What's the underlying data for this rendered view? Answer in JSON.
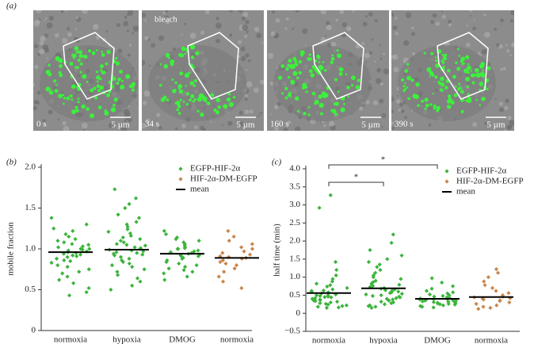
{
  "panel_a": {
    "label": "(a)",
    "frames": [
      {
        "time": "0 s",
        "scale": "5 µm"
      },
      {
        "time": "34 s",
        "note": "bleach",
        "scale": "5 µm"
      },
      {
        "time": "160 s",
        "scale": "5 µm"
      },
      {
        "time": "390 s",
        "scale": "5 µm"
      }
    ]
  },
  "chart_data": [
    {
      "type": "scatter",
      "panel_label": "(b)",
      "y_label": "mobile fraction",
      "categories": [
        "normoxia",
        "hypoxia",
        "DMOG",
        "normoxia"
      ],
      "ylim": [
        0,
        2
      ],
      "yticks": [
        0,
        0.5,
        {
          "value": 1,
          "label": "1.0"
        },
        1.5,
        {
          "value": 2,
          "label": "2.0"
        }
      ],
      "legend": "top-right",
      "series": [
        {
          "name": "EGFP-HIF-2α",
          "color": "#3cb43c",
          "marker": "diamond",
          "values": [
            [
              1.38,
              1.3,
              1.25,
              1.22,
              1.18,
              1.15,
              1.12,
              1.1,
              1.08,
              1.06,
              1.05,
              1.03,
              1.02,
              1.0,
              0.99,
              0.98,
              0.97,
              0.96,
              0.95,
              0.94,
              0.93,
              0.92,
              0.91,
              0.9,
              0.88,
              0.86,
              0.85,
              0.83,
              0.8,
              0.78,
              0.75,
              0.72,
              0.7,
              0.66,
              0.62,
              0.58,
              0.52,
              0.47,
              0.43,
              1.0
            ],
            [
              1.73,
              1.62,
              1.55,
              1.5,
              1.42,
              1.38,
              1.33,
              1.3,
              1.27,
              1.24,
              1.21,
              1.19,
              1.16,
              1.14,
              1.12,
              1.1,
              1.08,
              1.06,
              1.04,
              1.02,
              1.01,
              1.0,
              0.99,
              0.98,
              0.97,
              0.96,
              0.95,
              0.94,
              0.93,
              0.92,
              0.9,
              0.88,
              0.86,
              0.84,
              0.82,
              0.8,
              0.78,
              0.75,
              0.72,
              0.68,
              0.64,
              0.6,
              0.55,
              0.5,
              1.05
            ],
            [
              1.22,
              1.18,
              1.14,
              1.12,
              1.1,
              1.08,
              1.06,
              1.04,
              1.02,
              1.01,
              1.0,
              0.98,
              0.97,
              0.96,
              0.95,
              0.94,
              0.93,
              0.92,
              0.91,
              0.9,
              0.89,
              0.88,
              0.86,
              0.84,
              0.82,
              0.8,
              0.78,
              0.76,
              0.74,
              0.72,
              0.7,
              0.66,
              0.62,
              1.0,
              0.95
            ],
            null
          ]
        },
        {
          "name": "HIF-2α-DM-EGFP",
          "color": "#c8864a",
          "marker": "diamond",
          "values": [
            null,
            null,
            null,
            [
              1.22,
              1.15,
              1.1,
              1.06,
              1.02,
              1.0,
              0.97,
              0.95,
              0.93,
              0.91,
              0.9,
              0.89,
              0.88,
              0.86,
              0.84,
              0.82,
              0.8,
              0.76,
              0.72,
              0.66,
              0.6,
              0.52
            ]
          ]
        },
        {
          "name": "mean",
          "color": "#000000",
          "marker": "line",
          "values": [
            0.96,
            0.99,
            0.94,
            0.89
          ]
        }
      ]
    },
    {
      "type": "scatter",
      "panel_label": "(c)",
      "y_label": "half time (min)",
      "categories": [
        "normoxia",
        "hypoxia",
        "DMOG",
        "normoxia"
      ],
      "ylim": [
        -0.5,
        4
      ],
      "yticks": [
        {
          "value": -0.5,
          "label": "−0.5"
        },
        0,
        0.5,
        {
          "value": 1,
          "label": "1.0"
        },
        1.5,
        {
          "value": 2,
          "label": "2.0"
        },
        2.5,
        {
          "value": 3,
          "label": "3.0"
        },
        3.5,
        {
          "value": 4,
          "label": "4.0"
        }
      ],
      "legend": "top-right",
      "annotations": [
        {
          "text": "*",
          "between": [
            0,
            2
          ]
        },
        {
          "text": "*",
          "between": [
            0,
            1
          ]
        }
      ],
      "series": [
        {
          "name": "EGFP-HIF-2α",
          "color": "#3cb43c",
          "marker": "diamond",
          "values": [
            [
              3.27,
              2.92,
              1.42,
              1.2,
              1.05,
              0.95,
              0.88,
              0.82,
              0.78,
              0.74,
              0.7,
              0.66,
              0.63,
              0.6,
              0.58,
              0.55,
              0.52,
              0.5,
              0.48,
              0.46,
              0.44,
              0.42,
              0.4,
              0.38,
              0.36,
              0.34,
              0.32,
              0.3,
              0.28,
              0.26,
              0.24,
              0.22,
              0.2,
              0.18,
              0.16,
              0.15,
              0.5,
              0.45,
              0.35,
              0.62
            ],
            [
              2.18,
              1.95,
              1.75,
              1.6,
              1.5,
              1.42,
              1.35,
              1.28,
              1.2,
              1.12,
              1.05,
              1.0,
              0.95,
              0.9,
              0.86,
              0.82,
              0.79,
              0.76,
              0.73,
              0.7,
              0.68,
              0.66,
              0.64,
              0.62,
              0.6,
              0.58,
              0.56,
              0.54,
              0.52,
              0.5,
              0.48,
              0.46,
              0.44,
              0.42,
              0.4,
              0.38,
              0.35,
              0.32,
              0.3,
              0.28,
              0.25,
              0.22,
              0.2,
              0.18,
              0.15
            ],
            [
              0.97,
              0.85,
              0.75,
              0.68,
              0.62,
              0.58,
              0.55,
              0.52,
              0.5,
              0.48,
              0.46,
              0.44,
              0.42,
              0.41,
              0.4,
              0.39,
              0.38,
              0.37,
              0.36,
              0.35,
              0.34,
              0.33,
              0.32,
              0.31,
              0.3,
              0.29,
              0.28,
              0.27,
              0.26,
              0.25,
              0.24,
              0.22,
              0.2,
              0.18,
              0.16
            ],
            null
          ]
        },
        {
          "name": "HIF-2α-DM-EGFP",
          "color": "#c8864a",
          "marker": "diamond",
          "values": [
            null,
            null,
            null,
            [
              1.22,
              1.12,
              1.0,
              0.88,
              0.78,
              0.7,
              0.62,
              0.56,
              0.5,
              0.46,
              0.44,
              0.42,
              0.4,
              0.38,
              0.36,
              0.34,
              0.3,
              0.26,
              0.22,
              0.18,
              0.15,
              0.12
            ]
          ]
        },
        {
          "name": "mean",
          "color": "#000000",
          "marker": "line",
          "values": [
            0.56,
            0.69,
            0.4,
            0.45
          ]
        }
      ]
    }
  ]
}
